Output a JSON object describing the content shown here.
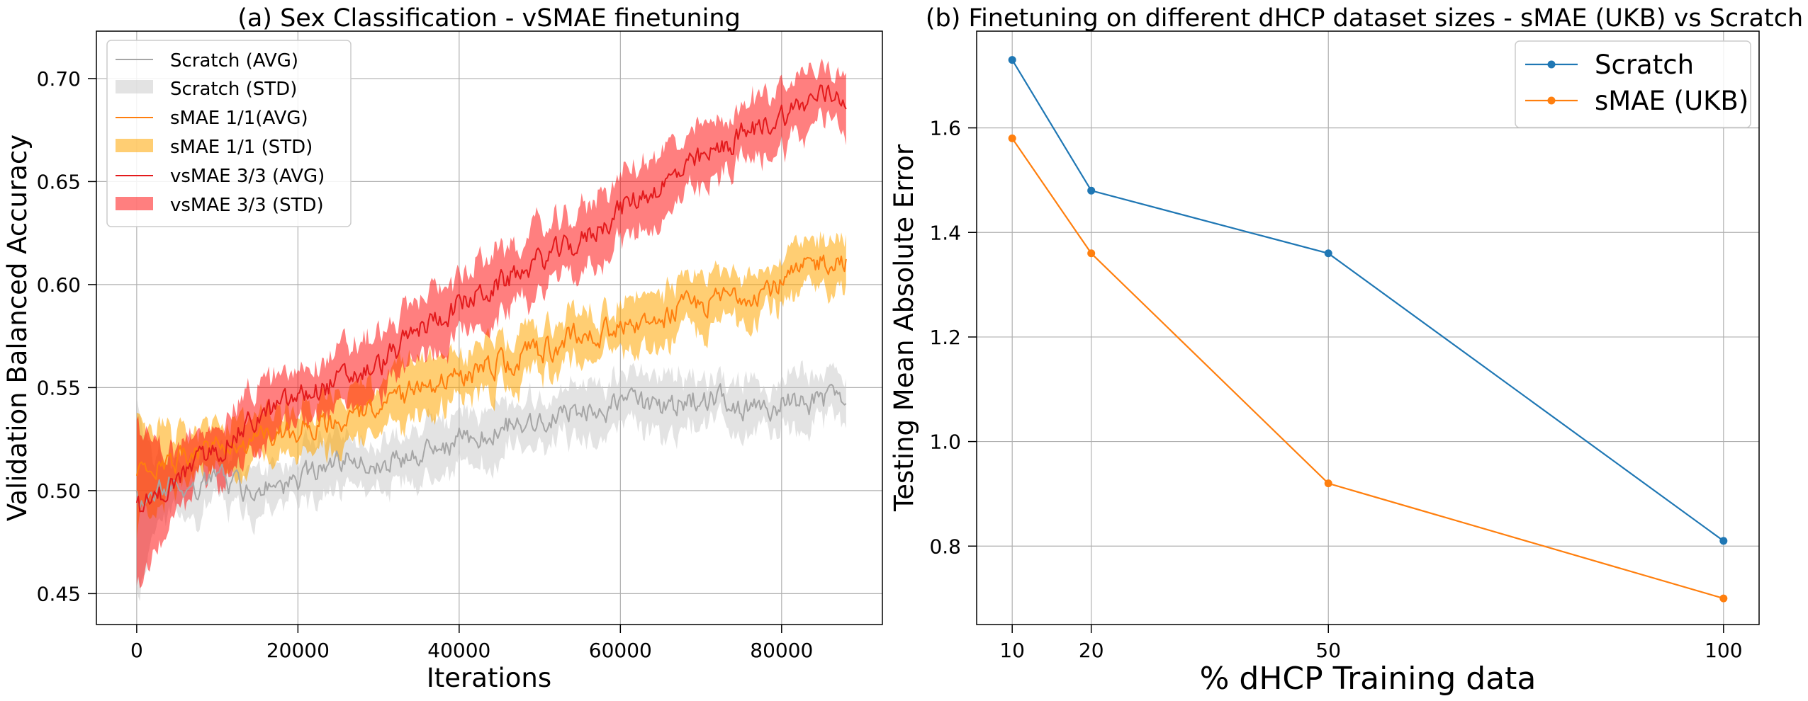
{
  "chart_data": [
    {
      "type": "line",
      "title": "(a) Sex Classification - vSMAE finetuning",
      "xlabel": "Iterations",
      "ylabel": "Validation Balanced Accuracy",
      "xlim": [
        -5000,
        92500
      ],
      "ylim": [
        0.435,
        0.723
      ],
      "xticks": [
        0,
        20000,
        40000,
        60000,
        80000
      ],
      "xtick_labels": [
        "0",
        "20000",
        "40000",
        "60000",
        "80000"
      ],
      "yticks": [
        0.45,
        0.5,
        0.55,
        0.6,
        0.65,
        0.7
      ],
      "ytick_labels": [
        "0.45",
        "0.50",
        "0.55",
        "0.60",
        "0.65",
        "0.70"
      ],
      "grid": true,
      "legend_position": "top-left",
      "legend": [
        "Scratch (AVG)",
        "Scratch (STD)",
        "sMAE 1/1(AVG)",
        "sMAE 1/1 (STD)",
        "vsMAE 3/3 (AVG)",
        "vsMAE 3/3 (STD)"
      ],
      "series": [
        {
          "name": "Scratch (AVG)",
          "std_name": "Scratch (STD)",
          "line_color": "#a6a6a6",
          "fill_color": "#c8c8c8",
          "fill_opacity": 0.5,
          "x": [
            0,
            2000,
            5000,
            10000,
            15000,
            20000,
            25000,
            30000,
            35000,
            40000,
            45000,
            50000,
            55000,
            60000,
            65000,
            70000,
            75000,
            80000,
            85000,
            88000
          ],
          "values": [
            0.495,
            0.5,
            0.502,
            0.505,
            0.5,
            0.505,
            0.515,
            0.515,
            0.515,
            0.525,
            0.53,
            0.535,
            0.537,
            0.542,
            0.54,
            0.545,
            0.541,
            0.542,
            0.543,
            0.547
          ],
          "std": [
            0.045,
            0.02,
            0.012,
            0.012,
            0.012,
            0.012,
            0.012,
            0.012,
            0.012,
            0.012,
            0.012,
            0.012,
            0.012,
            0.012,
            0.012,
            0.012,
            0.012,
            0.012,
            0.012,
            0.012
          ]
        },
        {
          "name": "sMAE 1/1(AVG)",
          "std_name": "sMAE 1/1 (STD)",
          "line_color": "#ff7f0e",
          "fill_color": "#ffa500",
          "fill_opacity": 0.55,
          "x": [
            0,
            2000,
            5000,
            10000,
            15000,
            20000,
            25000,
            30000,
            35000,
            40000,
            45000,
            50000,
            55000,
            60000,
            65000,
            70000,
            75000,
            80000,
            85000,
            88000
          ],
          "values": [
            0.51,
            0.512,
            0.515,
            0.52,
            0.525,
            0.53,
            0.535,
            0.54,
            0.55,
            0.553,
            0.562,
            0.568,
            0.575,
            0.58,
            0.585,
            0.59,
            0.596,
            0.6,
            0.612,
            0.613
          ],
          "std": [
            0.03,
            0.02,
            0.012,
            0.012,
            0.012,
            0.012,
            0.012,
            0.012,
            0.012,
            0.012,
            0.012,
            0.012,
            0.012,
            0.012,
            0.012,
            0.012,
            0.012,
            0.012,
            0.012,
            0.012
          ]
        },
        {
          "name": "vsMAE 3/3 (AVG)",
          "std_name": "vsMAE 3/3 (STD)",
          "line_color": "#e31a1c",
          "fill_color": "#ff0000",
          "fill_opacity": 0.5,
          "x": [
            0,
            2000,
            5000,
            10000,
            15000,
            20000,
            25000,
            30000,
            35000,
            40000,
            45000,
            50000,
            55000,
            60000,
            65000,
            70000,
            75000,
            80000,
            85000,
            88000
          ],
          "values": [
            0.49,
            0.495,
            0.505,
            0.52,
            0.535,
            0.545,
            0.553,
            0.56,
            0.578,
            0.59,
            0.6,
            0.612,
            0.62,
            0.637,
            0.648,
            0.66,
            0.672,
            0.682,
            0.692,
            0.692
          ],
          "std": [
            0.04,
            0.025,
            0.015,
            0.015,
            0.015,
            0.015,
            0.015,
            0.015,
            0.015,
            0.015,
            0.015,
            0.015,
            0.015,
            0.015,
            0.015,
            0.015,
            0.015,
            0.015,
            0.015,
            0.015
          ]
        }
      ]
    },
    {
      "type": "line",
      "title": "(b) Finetuning on different dHCP dataset sizes - sMAE (UKB) vs Scratch",
      "xlabel": "% dHCP Training data",
      "ylabel": "Testing Mean Absolute Error",
      "xlim": [
        5.5,
        104.5
      ],
      "ylim": [
        0.65,
        1.785
      ],
      "x": [
        10,
        20,
        50,
        100
      ],
      "xtick_labels": [
        "10",
        "20",
        "50",
        "100"
      ],
      "yticks": [
        0.8,
        1.0,
        1.2,
        1.4,
        1.6
      ],
      "ytick_labels": [
        "0.8",
        "1.0",
        "1.2",
        "1.4",
        "1.6"
      ],
      "grid": true,
      "legend_position": "top-right",
      "series": [
        {
          "name": "Scratch",
          "color": "#1f77b4",
          "values": [
            1.73,
            1.48,
            1.36,
            0.81
          ]
        },
        {
          "name": "sMAE (UKB)",
          "color": "#ff7f0e",
          "values": [
            1.58,
            1.36,
            0.92,
            0.7
          ]
        }
      ]
    }
  ]
}
